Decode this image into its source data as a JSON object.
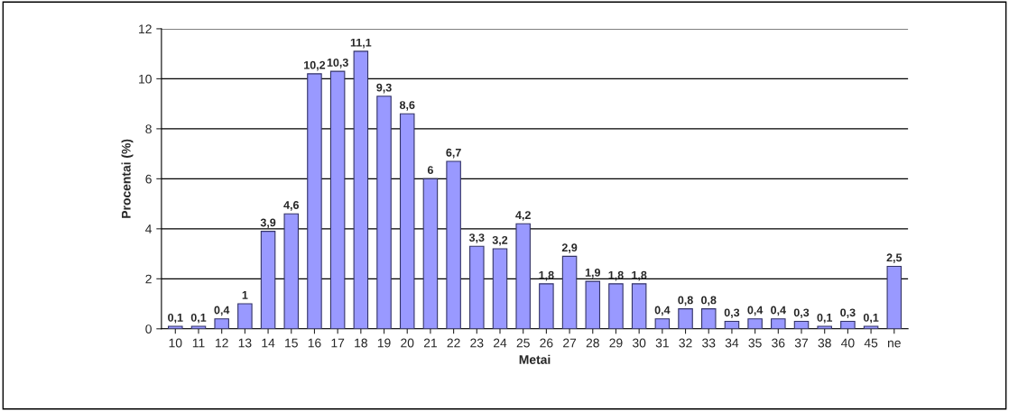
{
  "chart_data": {
    "type": "bar",
    "xlabel": "Metai",
    "ylabel": "Procentai (%)",
    "categories": [
      "10",
      "11",
      "12",
      "13",
      "14",
      "15",
      "16",
      "17",
      "18",
      "19",
      "20",
      "21",
      "22",
      "23",
      "24",
      "25",
      "26",
      "27",
      "28",
      "29",
      "30",
      "31",
      "32",
      "33",
      "34",
      "35",
      "36",
      "37",
      "38",
      "40",
      "45",
      "ne"
    ],
    "values": [
      0.1,
      0.1,
      0.4,
      1,
      3.9,
      4.6,
      10.2,
      10.3,
      11.1,
      9.3,
      8.6,
      6,
      6.7,
      3.3,
      3.2,
      4.2,
      1.8,
      2.9,
      1.9,
      1.8,
      1.8,
      0.4,
      0.8,
      0.8,
      0.3,
      0.4,
      0.4,
      0.3,
      0.1,
      0.3,
      0.1,
      2.5
    ],
    "value_labels": [
      "0,1",
      "0,1",
      "0,4",
      "1",
      "3,9",
      "4,6",
      "10,2",
      "10,3",
      "11,1",
      "9,3",
      "8,6",
      "6",
      "6,7",
      "3,3",
      "3,2",
      "4,2",
      "1,8",
      "2,9",
      "1,9",
      "1,8",
      "1,8",
      "0,4",
      "0,8",
      "0,8",
      "0,3",
      "0,4",
      "0,4",
      "0,3",
      "0,1",
      "0,3",
      "0,1",
      "2,5"
    ],
    "color": "#9999ff",
    "ylim": [
      0,
      12
    ],
    "yticks": [
      0,
      2,
      4,
      6,
      8,
      10,
      12
    ],
    "grid": "y",
    "legend": false
  }
}
